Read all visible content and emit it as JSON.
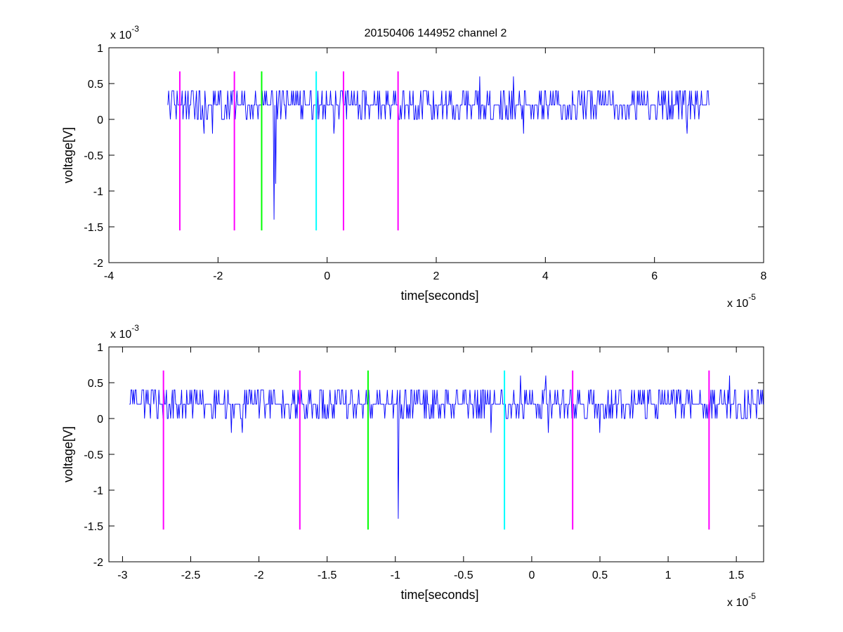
{
  "figure": {
    "title": "20150406 144952 channel 2"
  },
  "chart_data": [
    {
      "type": "line",
      "xlabel": "time[seconds]",
      "ylabel": "voltage[V]",
      "x_exponent_label": "x 10",
      "x_exponent": "-5",
      "y_exponent_label": "x 10",
      "y_exponent": "-3",
      "xlim": [
        -4,
        8
      ],
      "ylim": [
        -2,
        1
      ],
      "xticks": [
        -4,
        -2,
        0,
        2,
        4,
        6,
        8
      ],
      "yticks": [
        -2,
        -1.5,
        -1,
        -0.5,
        0,
        0.5,
        1
      ],
      "xtick_labels": [
        "-4",
        "-2",
        "0",
        "2",
        "4",
        "6",
        "8"
      ],
      "ytick_labels": [
        "-2",
        "-1.5",
        "-1",
        "-0.5",
        "0",
        "0.5",
        "1"
      ],
      "grid": false,
      "series": [
        {
          "color": "#0000ff",
          "x_start": -2.92,
          "x_end": 7.0,
          "baseline": 0.2,
          "levels": [
            0,
            0.2,
            0.4
          ],
          "min_points": [
            {
              "x": -2.25,
              "y": -0.2
            },
            {
              "x": -2.1,
              "y": -0.2
            },
            {
              "x": -0.98,
              "y": -1.4
            },
            {
              "x": -0.95,
              "y": -0.9
            },
            {
              "x": 0.12,
              "y": -0.2
            },
            {
              "x": 3.6,
              "y": -0.2
            },
            {
              "x": 6.6,
              "y": -0.2
            }
          ],
          "max_points": [
            {
              "x": 2.8,
              "y": 0.6
            },
            {
              "x": 3.42,
              "y": 0.6
            }
          ]
        }
      ],
      "vlines": [
        {
          "x": -2.7,
          "y_range": [
            -1.55,
            0.67
          ],
          "color": "#ff00ff"
        },
        {
          "x": -1.7,
          "y_range": [
            -1.55,
            0.67
          ],
          "color": "#ff00ff"
        },
        {
          "x": -1.2,
          "y_range": [
            -1.55,
            0.67
          ],
          "color": "#00ff00"
        },
        {
          "x": -0.2,
          "y_range": [
            -1.55,
            0.67
          ],
          "color": "#00ffff"
        },
        {
          "x": 0.3,
          "y_range": [
            -1.55,
            0.67
          ],
          "color": "#ff00ff"
        },
        {
          "x": 1.3,
          "y_range": [
            -1.55,
            0.67
          ],
          "color": "#ff00ff"
        }
      ]
    },
    {
      "type": "line",
      "xlabel": "time[seconds]",
      "ylabel": "voltage[V]",
      "x_exponent_label": "x 10",
      "x_exponent": "-5",
      "y_exponent_label": "x 10",
      "y_exponent": "-3",
      "xlim": [
        -3.1,
        1.7
      ],
      "ylim": [
        -2,
        1
      ],
      "xticks": [
        -3,
        -2.5,
        -2,
        -1.5,
        -1,
        -0.5,
        0,
        0.5,
        1,
        1.5
      ],
      "yticks": [
        -2,
        -1.5,
        -1,
        -0.5,
        0,
        0.5,
        1
      ],
      "xtick_labels": [
        "-3",
        "-2.5",
        "-2",
        "-1.5",
        "-1",
        "-0.5",
        "0",
        "0.5",
        "1",
        "1.5"
      ],
      "ytick_labels": [
        "-2",
        "-1.5",
        "-1",
        "-0.5",
        "0",
        "0.5",
        "1"
      ],
      "grid": false,
      "series": [
        {
          "color": "#0000ff",
          "x_start": -2.95,
          "x_end": 1.7,
          "baseline": 0.2,
          "levels": [
            0,
            0.2,
            0.4
          ],
          "min_points": [
            {
              "x": -2.2,
              "y": -0.2
            },
            {
              "x": -2.12,
              "y": -0.2
            },
            {
              "x": -0.98,
              "y": -1.4
            },
            {
              "x": -0.3,
              "y": -0.2
            },
            {
              "x": 0.12,
              "y": -0.2
            },
            {
              "x": 0.5,
              "y": -0.2
            }
          ],
          "max_points": [
            {
              "x": -0.08,
              "y": 0.6
            },
            {
              "x": 0.1,
              "y": 0.6
            },
            {
              "x": 1.45,
              "y": 0.6
            }
          ]
        }
      ],
      "vlines": [
        {
          "x": -2.7,
          "y_range": [
            -1.55,
            0.67
          ],
          "color": "#ff00ff"
        },
        {
          "x": -1.7,
          "y_range": [
            -1.55,
            0.67
          ],
          "color": "#ff00ff"
        },
        {
          "x": -1.2,
          "y_range": [
            -1.55,
            0.67
          ],
          "color": "#00ff00"
        },
        {
          "x": -0.2,
          "y_range": [
            -1.55,
            0.67
          ],
          "color": "#00ffff"
        },
        {
          "x": 0.3,
          "y_range": [
            -1.55,
            0.67
          ],
          "color": "#ff00ff"
        },
        {
          "x": 1.3,
          "y_range": [
            -1.55,
            0.67
          ],
          "color": "#ff00ff"
        }
      ]
    }
  ]
}
